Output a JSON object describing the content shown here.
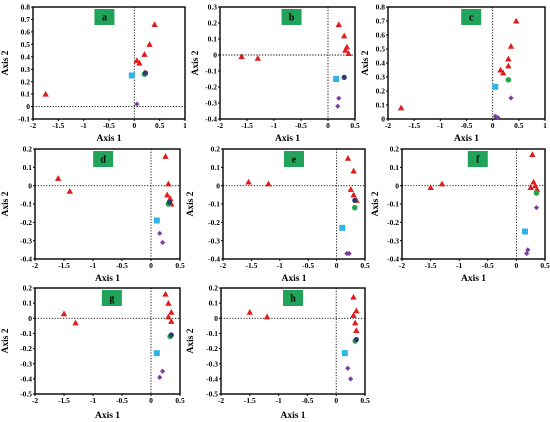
{
  "colors": {
    "triangle": "#e01b1b",
    "square": "#2eb4e6",
    "circle_navy": "#2a3b6b",
    "circle_green": "#22a84a",
    "diamond": "#7a3fa0",
    "badge": "#21a35a"
  },
  "chart_data": [
    {
      "type": "scatter",
      "badge": "a",
      "xlabel": "Axis 1",
      "ylabel": "Axis 2",
      "xlim": [
        -2,
        1
      ],
      "ylim": [
        -0.1,
        0.8
      ],
      "xticks": [
        "-2",
        "-1.5",
        "-1",
        "-0.5",
        "0",
        "0.5",
        "1"
      ],
      "yticks": [
        "-0.1",
        "0",
        "0.1",
        "0.2",
        "0.3",
        "0.4",
        "0.5",
        "0.6",
        "0.7",
        "0.8"
      ],
      "triangles": [
        [
          -1.75,
          0.1
        ],
        [
          0.05,
          0.37
        ],
        [
          0.1,
          0.35
        ],
        [
          0.2,
          0.42
        ],
        [
          0.3,
          0.5
        ],
        [
          0.4,
          0.66
        ],
        [
          0.2,
          0.27
        ]
      ],
      "squares": [
        [
          -0.05,
          0.25
        ]
      ],
      "circles_navy": [
        [
          0.22,
          0.27
        ]
      ],
      "circles_green": [
        [
          0.2,
          0.26
        ]
      ],
      "diamonds": [
        [
          0.05,
          0.02
        ]
      ]
    },
    {
      "type": "scatter",
      "badge": "b",
      "xlabel": "Axis 1",
      "ylabel": "Axis 2",
      "xlim": [
        -2,
        0.5
      ],
      "ylim": [
        -0.4,
        0.3
      ],
      "xticks": [
        "-2",
        "-1.5",
        "-1",
        "-0.5",
        "0",
        "0.5"
      ],
      "yticks": [
        "-0.4",
        "-0.3",
        "-0.2",
        "-0.1",
        "0",
        "0.1",
        "0.2",
        "0.3"
      ],
      "triangles": [
        [
          -1.6,
          -0.01
        ],
        [
          -1.3,
          -0.02
        ],
        [
          0.2,
          0.19
        ],
        [
          0.3,
          0.12
        ],
        [
          0.35,
          0.05
        ],
        [
          0.32,
          0.03
        ],
        [
          0.38,
          0.01
        ]
      ],
      "squares": [
        [
          0.15,
          -0.15
        ]
      ],
      "circles_navy": [
        [
          0.3,
          -0.14
        ]
      ],
      "circles_green": [],
      "diamonds": [
        [
          0.2,
          -0.27
        ],
        [
          0.18,
          -0.32
        ]
      ]
    },
    {
      "type": "scatter",
      "badge": "c",
      "xlabel": "Axis 1",
      "ylabel": "Axis 2",
      "xlim": [
        -2,
        1
      ],
      "ylim": [
        0,
        0.8
      ],
      "xticks": [
        "-2",
        "-1.5",
        "-1",
        "-0.5",
        "0",
        "0.5",
        "1"
      ],
      "yticks": [
        "0",
        "0.1",
        "0.2",
        "0.3",
        "0.4",
        "0.5",
        "0.6",
        "0.7",
        "0.8"
      ],
      "triangles": [
        [
          -1.75,
          0.08
        ],
        [
          0.15,
          0.35
        ],
        [
          0.2,
          0.33
        ],
        [
          0.3,
          0.38
        ],
        [
          0.35,
          0.52
        ],
        [
          0.45,
          0.7
        ],
        [
          0.3,
          0.43
        ]
      ],
      "squares": [
        [
          0.05,
          0.23
        ]
      ],
      "circles_navy": [],
      "circles_green": [
        [
          0.3,
          0.28
        ]
      ],
      "diamonds": [
        [
          0.35,
          0.15
        ],
        [
          0.05,
          0.02
        ],
        [
          0.1,
          0.01
        ]
      ]
    },
    {
      "type": "scatter",
      "badge": "d",
      "xlabel": "Axis 1",
      "ylabel": "Axis 2",
      "xlim": [
        -2,
        0.5
      ],
      "ylim": [
        -0.4,
        0.2
      ],
      "xticks": [
        "-2",
        "-1.5",
        "-1",
        "-0.5",
        "0",
        "0.5"
      ],
      "yticks": [
        "-0.4",
        "-0.3",
        "-0.2",
        "-0.1",
        "0",
        "0.1",
        "0.2"
      ],
      "triangles": [
        [
          -1.6,
          0.04
        ],
        [
          -1.4,
          -0.03
        ],
        [
          0.25,
          0.16
        ],
        [
          0.3,
          0.01
        ],
        [
          0.28,
          -0.05
        ],
        [
          0.33,
          -0.07
        ],
        [
          0.35,
          -0.1
        ]
      ],
      "squares": [
        [
          0.1,
          -0.19
        ]
      ],
      "circles_navy": [
        [
          0.32,
          -0.09
        ]
      ],
      "circles_green": [
        [
          0.3,
          -0.1
        ]
      ],
      "diamonds": [
        [
          0.15,
          -0.26
        ],
        [
          0.2,
          -0.31
        ]
      ]
    },
    {
      "type": "scatter",
      "badge": "e",
      "xlabel": "Axis 1",
      "ylabel": "Axis 2",
      "xlim": [
        -2,
        0.5
      ],
      "ylim": [
        -0.4,
        0.2
      ],
      "xticks": [
        "-2",
        "-1.5",
        "-1",
        "-0.5",
        "0",
        "0.5"
      ],
      "yticks": [
        "-0.4",
        "-0.3",
        "-0.2",
        "-0.1",
        "0",
        "0.1",
        "0.2"
      ],
      "triangles": [
        [
          -1.55,
          0.02
        ],
        [
          -1.2,
          0.01
        ],
        [
          0.2,
          0.15
        ],
        [
          0.3,
          0.08
        ],
        [
          0.25,
          -0.02
        ],
        [
          0.3,
          -0.05
        ],
        [
          0.35,
          -0.08
        ]
      ],
      "squares": [
        [
          0.1,
          -0.23
        ]
      ],
      "circles_navy": [
        [
          0.32,
          -0.08
        ]
      ],
      "circles_green": [
        [
          0.32,
          -0.12
        ]
      ],
      "diamonds": [
        [
          0.18,
          -0.37
        ],
        [
          0.22,
          -0.37
        ]
      ]
    },
    {
      "type": "scatter",
      "badge": "f",
      "xlabel": "Axis 1",
      "ylabel": "Axis 2",
      "xlim": [
        -2,
        0.5
      ],
      "ylim": [
        -0.4,
        0.2
      ],
      "xticks": [
        "-2",
        "-1.5",
        "-1",
        "-0.5",
        "0",
        "0.5"
      ],
      "yticks": [
        "-0.4",
        "-0.3",
        "-0.2",
        "-0.1",
        "0",
        "0.1",
        "0.2"
      ],
      "triangles": [
        [
          -1.5,
          -0.01
        ],
        [
          -1.3,
          0.01
        ],
        [
          0.28,
          0.17
        ],
        [
          0.3,
          0.02
        ],
        [
          0.25,
          -0.01
        ],
        [
          0.33,
          0.0
        ],
        [
          0.36,
          -0.02
        ]
      ],
      "squares": [
        [
          0.15,
          -0.25
        ]
      ],
      "circles_navy": [],
      "circles_green": [
        [
          0.35,
          -0.04
        ]
      ],
      "diamonds": [
        [
          0.35,
          -0.12
        ],
        [
          0.2,
          -0.35
        ],
        [
          0.18,
          -0.37
        ]
      ]
    },
    {
      "type": "scatter",
      "badge": "g",
      "xlabel": "Axis 1",
      "ylabel": "Axis 2",
      "xlim": [
        -2,
        0.5
      ],
      "ylim": [
        -0.5,
        0.2
      ],
      "xticks": [
        "-2",
        "-1.5",
        "-1",
        "-0.5",
        "0",
        "0.5"
      ],
      "yticks": [
        "-0.5",
        "-0.4",
        "-0.3",
        "-0.2",
        "-0.1",
        "0",
        "0.1",
        "0.2"
      ],
      "triangles": [
        [
          -1.5,
          0.03
        ],
        [
          -1.3,
          -0.03
        ],
        [
          0.25,
          0.16
        ],
        [
          0.3,
          0.1
        ],
        [
          0.35,
          0.04
        ],
        [
          0.3,
          0.01
        ],
        [
          0.35,
          -0.02
        ]
      ],
      "squares": [
        [
          0.1,
          -0.23
        ]
      ],
      "circles_navy": [
        [
          0.35,
          -0.11
        ]
      ],
      "circles_green": [
        [
          0.33,
          -0.12
        ]
      ],
      "diamonds": [
        [
          0.2,
          -0.35
        ],
        [
          0.15,
          -0.39
        ]
      ]
    },
    {
      "type": "scatter",
      "badge": "h",
      "xlabel": "Axis 1",
      "ylabel": "Axis 2",
      "xlim": [
        -2,
        0.5
      ],
      "ylim": [
        -0.5,
        0.2
      ],
      "xticks": [
        "-2",
        "-1.5",
        "-1",
        "-0.5",
        "0",
        "0.5"
      ],
      "yticks": [
        "-0.5",
        "-0.4",
        "-0.3",
        "-0.2",
        "-0.1",
        "0",
        "0.1",
        "0.2"
      ],
      "triangles": [
        [
          -1.5,
          0.04
        ],
        [
          -1.2,
          0.01
        ],
        [
          0.3,
          0.14
        ],
        [
          0.35,
          0.05
        ],
        [
          0.3,
          0.02
        ],
        [
          0.33,
          -0.03
        ],
        [
          0.35,
          -0.08
        ]
      ],
      "squares": [
        [
          0.15,
          -0.23
        ]
      ],
      "circles_navy": [
        [
          0.35,
          -0.14
        ]
      ],
      "circles_green": [
        [
          0.33,
          -0.15
        ]
      ],
      "diamonds": [
        [
          0.2,
          -0.33
        ],
        [
          0.25,
          -0.4
        ]
      ]
    }
  ]
}
